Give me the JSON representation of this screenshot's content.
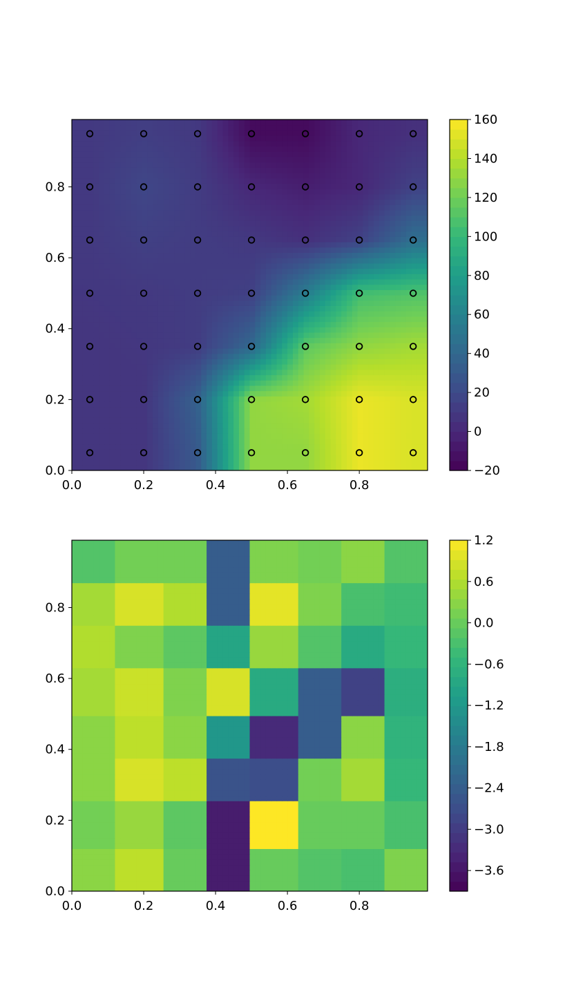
{
  "chart_data": [
    {
      "type": "heatmap",
      "style": "filled-contour",
      "colormap": "viridis",
      "xlim": [
        0.0,
        0.99
      ],
      "ylim": [
        0.0,
        0.99
      ],
      "x_ticks": [
        0.0,
        0.2,
        0.4,
        0.6,
        0.8
      ],
      "x_tick_labels": [
        "0.0",
        "0.2",
        "0.4",
        "0.6",
        "0.8"
      ],
      "y_ticks": [
        0.0,
        0.2,
        0.4,
        0.6,
        0.8
      ],
      "y_tick_labels": [
        "0.0",
        "0.2",
        "0.4",
        "0.6",
        "0.8"
      ],
      "colorbar": {
        "range": [
          -20,
          160
        ],
        "ticks": [
          -20,
          0,
          20,
          40,
          60,
          80,
          100,
          120,
          140,
          160
        ],
        "tick_labels": [
          "−20",
          "0",
          "20",
          "40",
          "60",
          "80",
          "100",
          "120",
          "140",
          "160"
        ]
      },
      "sample_points_x": [
        0.05,
        0.2,
        0.35,
        0.5,
        0.65,
        0.8,
        0.95
      ],
      "sample_points_y": [
        0.05,
        0.2,
        0.35,
        0.5,
        0.65,
        0.8,
        0.95
      ],
      "grid_x": [
        0.05,
        0.2,
        0.35,
        0.5,
        0.65,
        0.8,
        0.95
      ],
      "grid_y": [
        0.05,
        0.2,
        0.35,
        0.5,
        0.65,
        0.8,
        0.95
      ],
      "z": [
        [
          8,
          8,
          30,
          130,
          130,
          155,
          150
        ],
        [
          8,
          8,
          35,
          130,
          135,
          155,
          150
        ],
        [
          8,
          9,
          12,
          40,
          115,
          130,
          135
        ],
        [
          9,
          10,
          12,
          14,
          55,
          105,
          110
        ],
        [
          10,
          14,
          12,
          10,
          5,
          15,
          45
        ],
        [
          10,
          18,
          12,
          0,
          -5,
          0,
          15
        ],
        [
          10,
          13,
          10,
          -15,
          -15,
          0,
          5
        ]
      ]
    },
    {
      "type": "heatmap",
      "style": "filled-contour",
      "colormap": "viridis",
      "xlim": [
        0.0,
        0.99
      ],
      "ylim": [
        0.0,
        0.99
      ],
      "x_ticks": [
        0.0,
        0.2,
        0.4,
        0.6,
        0.8
      ],
      "x_tick_labels": [
        "0.0",
        "0.2",
        "0.4",
        "0.6",
        "0.8"
      ],
      "y_ticks": [
        0.0,
        0.2,
        0.4,
        0.6,
        0.8
      ],
      "y_tick_labels": [
        "0.0",
        "0.2",
        "0.4",
        "0.6",
        "0.8"
      ],
      "colorbar": {
        "range": [
          -3.9,
          1.2
        ],
        "ticks": [
          -3.6,
          -3.0,
          -2.4,
          -1.8,
          -1.2,
          -0.6,
          0.0,
          0.6,
          1.2
        ],
        "tick_labels": [
          "−3.6",
          "−3.0",
          "−2.4",
          "−1.8",
          "−1.2",
          "−0.6",
          "0.0",
          "0.6",
          "1.2"
        ]
      },
      "block_edges_x": [
        0.0,
        0.125,
        0.25,
        0.375,
        0.5,
        0.625,
        0.75,
        0.875,
        0.99
      ],
      "block_edges_y": [
        0.0,
        0.125,
        0.25,
        0.375,
        0.5,
        0.625,
        0.75,
        0.875,
        0.99
      ],
      "blocks": [
        [
          0.3,
          0.7,
          0.0,
          -3.5,
          0.0,
          -0.2,
          -0.3,
          0.2
        ],
        [
          0.1,
          0.4,
          -0.1,
          -3.5,
          1.2,
          0.0,
          0.0,
          -0.3
        ],
        [
          0.3,
          0.9,
          0.7,
          -2.6,
          -2.7,
          0.1,
          0.5,
          -0.5
        ],
        [
          0.3,
          0.7,
          0.3,
          -1.2,
          -3.3,
          -2.4,
          0.3,
          -0.6
        ],
        [
          0.5,
          0.8,
          0.2,
          0.9,
          -0.8,
          -2.4,
          -2.9,
          -0.7
        ],
        [
          0.6,
          0.2,
          -0.1,
          -0.9,
          0.4,
          -0.2,
          -0.8,
          -0.5
        ],
        [
          0.5,
          0.9,
          0.6,
          -2.4,
          1.0,
          0.2,
          -0.3,
          -0.4
        ],
        [
          -0.2,
          0.1,
          0.1,
          -2.4,
          0.2,
          0.1,
          0.3,
          -0.2
        ]
      ]
    }
  ]
}
